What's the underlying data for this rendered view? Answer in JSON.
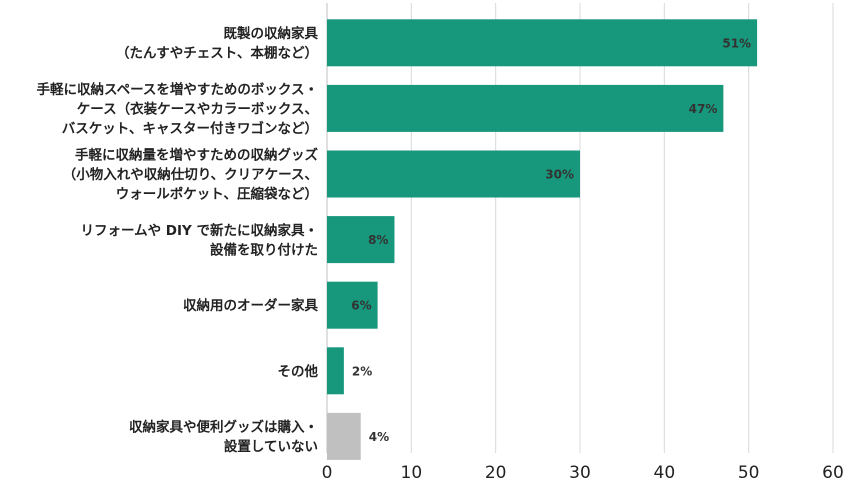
{
  "chart_data": {
    "type": "bar",
    "orientation": "horizontal",
    "categories": [
      [
        "既製の収納家具",
        "（たんすやチェスト、本棚など）"
      ],
      [
        "手軽に収納スペースを増やすためのボックス・",
        "ケース（衣装ケースやカラーボックス、",
        "バスケット、キャスター付きワゴンなど）"
      ],
      [
        "手軽に収納量を増やすための収納グッズ",
        "（小物入れや収納仕切り、クリアケース、",
        "ウォールポケット、圧縮袋など）"
      ],
      [
        "リフォームや DIY で新たに収納家具・",
        "設備を取り付けた"
      ],
      [
        "収納用のオーダー家具"
      ],
      [
        "その他"
      ],
      [
        "収納家具や便利グッズは購入・",
        "設置していない"
      ]
    ],
    "values": [
      51,
      47,
      30,
      8,
      6,
      2,
      4
    ],
    "data_labels": [
      "51%",
      "47%",
      "30%",
      "8%",
      "6%",
      "2%",
      "4%"
    ],
    "bar_colors": [
      "#17977b",
      "#17977b",
      "#17977b",
      "#17977b",
      "#17977b",
      "#17977b",
      "#c0c0c0"
    ],
    "xlim": [
      0,
      60
    ],
    "x_ticks": [
      0,
      10,
      20,
      30,
      40,
      50,
      60
    ],
    "grid": true,
    "grid_color": "#d9d9d9"
  }
}
